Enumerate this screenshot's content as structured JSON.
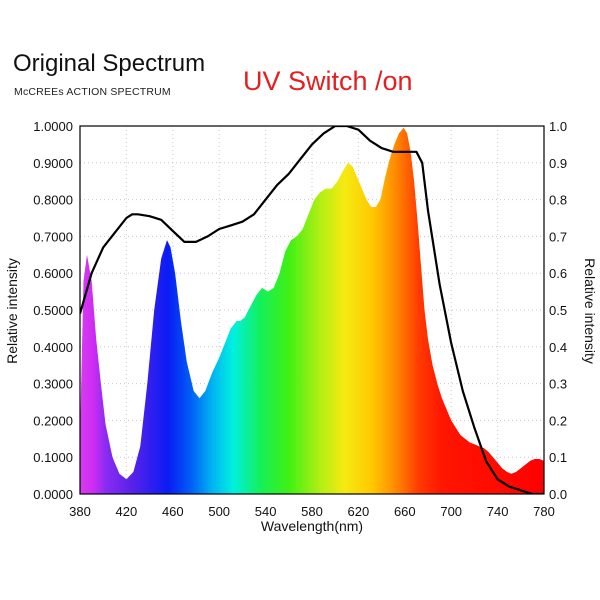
{
  "header": {
    "title": "Original Spectrum",
    "subtitle": "McCREEs ACTION SPECTRUM",
    "mode_label": "UV Switch /on"
  },
  "chart_data": {
    "type": "area",
    "xlabel": "Wavelength(nm)",
    "ylabel_left": "Relative intensity",
    "ylabel_right": "Relative intensity",
    "xlim": [
      380,
      780
    ],
    "ylim": [
      0,
      1
    ],
    "x_ticks": [
      "380",
      "420",
      "460",
      "500",
      "540",
      "580",
      "620",
      "660",
      "700",
      "740",
      "780"
    ],
    "y_ticks_left": [
      "0.0000",
      "0.1000",
      "0.2000",
      "0.3000",
      "0.4000",
      "0.5000",
      "0.6000",
      "0.7000",
      "0.8000",
      "0.9000",
      "1.0000"
    ],
    "y_ticks_right": [
      "0.0",
      "0.1",
      "0.2",
      "0.3",
      "0.4",
      "0.5",
      "0.6",
      "0.7",
      "0.8",
      "0.9",
      "1.0"
    ],
    "grid": true,
    "fill": "visible-spectrum gradient",
    "line_color": "#000000",
    "series": [
      {
        "kind": "area",
        "x": [
          380,
          383,
          386,
          390,
          394,
          398,
          402,
          408,
          414,
          420,
          426,
          432,
          438,
          444,
          450,
          455,
          458,
          462,
          467,
          472,
          478,
          483,
          488,
          494,
          500,
          505,
          510,
          515,
          518,
          522,
          527,
          532,
          537,
          542,
          547,
          552,
          557,
          562,
          567,
          572,
          577,
          582,
          587,
          592,
          597,
          602,
          607,
          611,
          615,
          619,
          623,
          627,
          631,
          635,
          639,
          643,
          647,
          651,
          655,
          659,
          662,
          665,
          668,
          671,
          674,
          677,
          680,
          684,
          688,
          692,
          696,
          700,
          704,
          708,
          712,
          716,
          720,
          724,
          728,
          732,
          736,
          740,
          744,
          748,
          752,
          756,
          760,
          764,
          768,
          772,
          776,
          780
        ],
        "y": [
          0.16,
          0.58,
          0.65,
          0.58,
          0.42,
          0.3,
          0.19,
          0.1,
          0.055,
          0.04,
          0.06,
          0.13,
          0.3,
          0.5,
          0.64,
          0.69,
          0.67,
          0.6,
          0.47,
          0.36,
          0.28,
          0.26,
          0.28,
          0.33,
          0.37,
          0.41,
          0.45,
          0.47,
          0.47,
          0.48,
          0.51,
          0.54,
          0.56,
          0.55,
          0.56,
          0.6,
          0.66,
          0.69,
          0.7,
          0.72,
          0.76,
          0.8,
          0.82,
          0.83,
          0.83,
          0.85,
          0.88,
          0.9,
          0.89,
          0.86,
          0.83,
          0.8,
          0.78,
          0.78,
          0.8,
          0.86,
          0.91,
          0.95,
          0.98,
          0.995,
          0.98,
          0.93,
          0.85,
          0.74,
          0.62,
          0.5,
          0.42,
          0.35,
          0.3,
          0.26,
          0.23,
          0.2,
          0.18,
          0.16,
          0.15,
          0.14,
          0.135,
          0.13,
          0.125,
          0.115,
          0.1,
          0.085,
          0.07,
          0.06,
          0.055,
          0.06,
          0.07,
          0.08,
          0.09,
          0.095,
          0.095,
          0.09
        ]
      },
      {
        "kind": "line",
        "x": [
          380,
          390,
          400,
          410,
          420,
          425,
          430,
          440,
          450,
          460,
          470,
          480,
          490,
          500,
          510,
          520,
          530,
          540,
          550,
          560,
          570,
          580,
          590,
          600,
          610,
          620,
          630,
          640,
          650,
          660,
          670,
          675,
          680,
          690,
          700,
          710,
          720,
          730,
          740,
          750,
          760,
          770,
          780
        ],
        "y": [
          0.49,
          0.6,
          0.67,
          0.71,
          0.75,
          0.76,
          0.76,
          0.755,
          0.745,
          0.715,
          0.685,
          0.685,
          0.7,
          0.72,
          0.73,
          0.74,
          0.76,
          0.8,
          0.84,
          0.87,
          0.91,
          0.95,
          0.98,
          1.0,
          1.0,
          0.99,
          0.96,
          0.94,
          0.93,
          0.93,
          0.93,
          0.9,
          0.77,
          0.57,
          0.41,
          0.28,
          0.18,
          0.09,
          0.04,
          0.02,
          0.01,
          0.0,
          0.0
        ]
      }
    ]
  }
}
